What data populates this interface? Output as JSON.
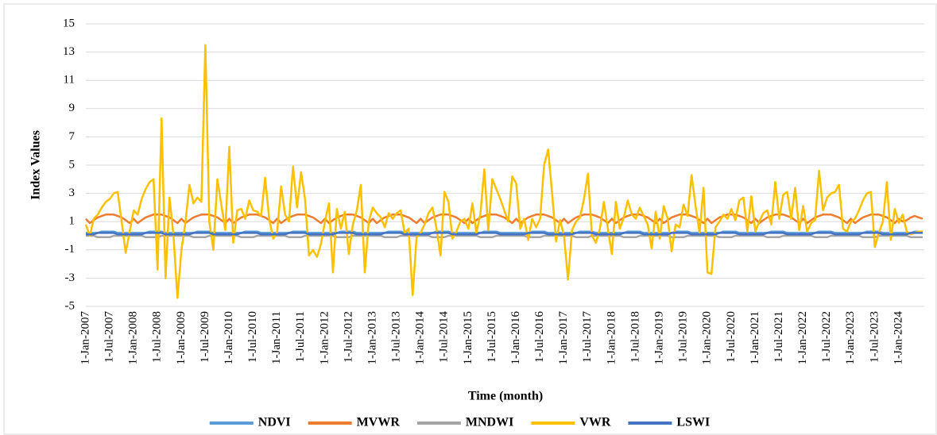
{
  "chart_data": {
    "type": "line",
    "y_label": "Index Values",
    "x_label": "Time (month)",
    "categories": [
      "1-Jan-2007",
      null,
      null,
      null,
      null,
      null,
      "1-Jul-2007",
      null,
      null,
      null,
      null,
      null,
      "1-Jan-2008",
      null,
      null,
      null,
      null,
      null,
      "1-Jul-2008",
      null,
      null,
      null,
      null,
      null,
      "1-Jan-2009",
      null,
      null,
      null,
      null,
      null,
      "1-Jul-2009",
      null,
      null,
      null,
      null,
      null,
      "1-Jan-2010",
      null,
      null,
      null,
      null,
      null,
      "1-Jul-2010",
      null,
      null,
      null,
      null,
      null,
      "1-Jan-2011",
      null,
      null,
      null,
      null,
      null,
      "1-Jul-2011",
      null,
      null,
      null,
      null,
      null,
      "1-Jan-2012",
      null,
      null,
      null,
      null,
      null,
      "1-Jul-2012",
      null,
      null,
      null,
      null,
      null,
      "1-Jan-2013",
      null,
      null,
      null,
      null,
      null,
      "1-Jul-2013",
      null,
      null,
      null,
      null,
      null,
      "1-Jan-2014",
      null,
      null,
      null,
      null,
      null,
      "1-Jul-2014",
      null,
      null,
      null,
      null,
      null,
      "1-Jan-2015",
      null,
      null,
      null,
      null,
      null,
      "1-Jul-2015",
      null,
      null,
      null,
      null,
      null,
      "1-Jan-2016",
      null,
      null,
      null,
      null,
      null,
      "1-Jul-2016",
      null,
      null,
      null,
      null,
      null,
      "1-Jan-2017",
      null,
      null,
      null,
      null,
      null,
      "1-Jul-2017",
      null,
      null,
      null,
      null,
      null,
      "1-Jan-2018",
      null,
      null,
      null,
      null,
      null,
      "1-Jul-2018",
      null,
      null,
      null,
      null,
      null,
      "1-Jan-2019",
      null,
      null,
      null,
      null,
      null,
      "1-Jul-2019",
      null,
      null,
      null,
      null,
      null,
      "1-Jan-2020",
      null,
      null,
      null,
      null,
      null,
      "1-Jul-2020",
      null,
      null,
      null,
      null,
      null,
      "1-Jan-2021",
      null,
      null,
      null,
      null,
      null,
      "1-Jul-2021",
      null,
      null,
      null,
      null,
      null,
      "1-Jan-2022",
      null,
      null,
      null,
      null,
      null,
      "1-Jul-2022",
      null,
      null,
      null,
      null,
      null,
      "1-Jan-2023",
      null,
      null,
      null,
      null,
      null,
      "1-Jul-2023",
      null,
      null,
      null,
      null,
      null,
      "1-Jan-2024",
      null,
      null,
      null,
      null,
      null,
      null
    ],
    "series": [
      {
        "name": "NDVI",
        "color": "#5b9bd5",
        "values": [
          0.2,
          0.2,
          0.2,
          0.2,
          0.3,
          0.3,
          0.3,
          0.3,
          0.2,
          0.2,
          0.2,
          0.2,
          0.2,
          0.2,
          0.2,
          0.2,
          0.3,
          0.3,
          0.3,
          0.3,
          0.2,
          0.2,
          0.2,
          0.2,
          0.2,
          0.2,
          0.2,
          0.2,
          0.3,
          0.3,
          0.3,
          0.3,
          0.2,
          0.2,
          0.2,
          0.2,
          0.2,
          0.2,
          0.2,
          0.2,
          0.3,
          0.3,
          0.3,
          0.3,
          0.2,
          0.2,
          0.2,
          0.2,
          0.2,
          0.2,
          0.2,
          0.2,
          0.3,
          0.3,
          0.3,
          0.3,
          0.2,
          0.2,
          0.2,
          0.2,
          0.2,
          0.2,
          0.2,
          0.2,
          0.3,
          0.3,
          0.3,
          0.3,
          0.2,
          0.2,
          0.2,
          0.2,
          0.2,
          0.2,
          0.2,
          0.2,
          0.3,
          0.3,
          0.3,
          0.3,
          0.2,
          0.2,
          0.2,
          0.2,
          0.2,
          0.2,
          0.2,
          0.2,
          0.3,
          0.3,
          0.3,
          0.3,
          0.2,
          0.2,
          0.2,
          0.2,
          0.2,
          0.2,
          0.2,
          0.2,
          0.3,
          0.3,
          0.3,
          0.3,
          0.2,
          0.2,
          0.2,
          0.2,
          0.2,
          0.2,
          0.2,
          0.2,
          0.3,
          0.3,
          0.3,
          0.3,
          0.2,
          0.2,
          0.2,
          0.2,
          0.2,
          0.2,
          0.2,
          0.2,
          0.3,
          0.3,
          0.3,
          0.3,
          0.2,
          0.2,
          0.2,
          0.2,
          0.2,
          0.2,
          0.2,
          0.2,
          0.3,
          0.3,
          0.3,
          0.3,
          0.2,
          0.2,
          0.2,
          0.2,
          0.2,
          0.2,
          0.2,
          0.2,
          0.3,
          0.3,
          0.3,
          0.3,
          0.2,
          0.2,
          0.2,
          0.2,
          0.2,
          0.2,
          0.2,
          0.2,
          0.3,
          0.3,
          0.3,
          0.3,
          0.2,
          0.2,
          0.2,
          0.2,
          0.2,
          0.2,
          0.2,
          0.2,
          0.3,
          0.3,
          0.3,
          0.3,
          0.2,
          0.2,
          0.2,
          0.2,
          0.2,
          0.2,
          0.2,
          0.2,
          0.3,
          0.3,
          0.3,
          0.3,
          0.2,
          0.2,
          0.2,
          0.2,
          0.2,
          0.2,
          0.2,
          0.2,
          0.3,
          0.3,
          0.3,
          0.3,
          0.2,
          0.2,
          0.2,
          0.2,
          0.2,
          0.2,
          0.2,
          0.2,
          0.3,
          0.3,
          0.3
        ]
      },
      {
        "name": "MVWR",
        "color": "#ed7d31",
        "values": [
          1.2,
          0.9,
          1.1,
          1.3,
          1.4,
          1.5,
          1.5,
          1.5,
          1.4,
          1.3,
          1.1,
          0.9,
          1.2,
          0.9,
          1.1,
          1.3,
          1.4,
          1.5,
          1.5,
          1.5,
          1.4,
          1.3,
          1.1,
          0.9,
          1.2,
          0.9,
          1.1,
          1.3,
          1.4,
          1.5,
          1.5,
          1.5,
          1.4,
          1.3,
          1.1,
          0.9,
          1.2,
          0.9,
          1.1,
          1.3,
          1.4,
          1.5,
          1.5,
          1.5,
          1.4,
          1.3,
          1.1,
          0.9,
          1.2,
          0.9,
          1.1,
          1.3,
          1.4,
          1.5,
          1.5,
          1.5,
          1.4,
          1.3,
          1.1,
          0.9,
          1.2,
          0.9,
          1.1,
          1.3,
          1.4,
          1.5,
          1.5,
          1.5,
          1.4,
          1.3,
          1.1,
          0.9,
          1.2,
          0.9,
          1.1,
          1.3,
          1.4,
          1.5,
          1.5,
          1.5,
          1.4,
          1.3,
          1.1,
          0.9,
          1.2,
          0.9,
          1.1,
          1.3,
          1.4,
          1.5,
          1.5,
          1.5,
          1.4,
          1.3,
          1.1,
          0.9,
          1.2,
          0.9,
          1.1,
          1.3,
          1.4,
          1.5,
          1.5,
          1.5,
          1.4,
          1.3,
          1.1,
          0.9,
          1.2,
          0.9,
          1.1,
          1.3,
          1.4,
          1.5,
          1.5,
          1.5,
          1.4,
          1.3,
          1.1,
          0.9,
          1.2,
          0.9,
          1.1,
          1.3,
          1.4,
          1.5,
          1.5,
          1.5,
          1.4,
          1.3,
          1.1,
          0.9,
          1.2,
          0.9,
          1.1,
          1.3,
          1.4,
          1.5,
          1.5,
          1.5,
          1.4,
          1.3,
          1.1,
          0.9,
          1.2,
          0.9,
          1.1,
          1.3,
          1.4,
          1.5,
          1.5,
          1.5,
          1.4,
          1.3,
          1.1,
          0.9,
          1.2,
          0.9,
          1.1,
          1.3,
          1.4,
          1.5,
          1.5,
          1.5,
          1.4,
          1.3,
          1.1,
          0.9,
          1.2,
          0.9,
          1.1,
          1.3,
          1.4,
          1.5,
          1.5,
          1.5,
          1.4,
          1.3,
          1.1,
          0.9,
          1.2,
          0.9,
          1.1,
          1.3,
          1.4,
          1.5,
          1.5,
          1.5,
          1.4,
          1.3,
          1.1,
          0.9,
          1.2,
          0.9,
          1.1,
          1.3,
          1.4,
          1.5,
          1.5,
          1.5,
          1.4,
          1.3,
          1.1,
          0.9,
          1.2,
          1.0,
          1.1,
          1.3,
          1.4,
          1.3,
          1.2
        ]
      },
      {
        "name": "MNDWI",
        "color": "#a5a5a5",
        "values": [
          0.0,
          0.0,
          0.0,
          -0.1,
          -0.1,
          -0.1,
          -0.1,
          0.0,
          0.0,
          0.0,
          0.0,
          0.0,
          0.0,
          0.0,
          0.0,
          -0.1,
          -0.1,
          -0.1,
          -0.1,
          0.0,
          0.0,
          0.0,
          0.0,
          0.0,
          0.0,
          0.0,
          0.0,
          -0.1,
          -0.1,
          -0.1,
          -0.1,
          0.0,
          0.0,
          0.0,
          0.0,
          0.0,
          0.0,
          0.0,
          0.0,
          -0.1,
          -0.1,
          -0.1,
          -0.1,
          0.0,
          0.0,
          0.0,
          0.0,
          0.0,
          0.0,
          0.0,
          0.0,
          -0.1,
          -0.1,
          -0.1,
          -0.1,
          0.0,
          0.0,
          0.0,
          0.0,
          0.0,
          0.0,
          0.0,
          0.0,
          -0.1,
          -0.1,
          -0.1,
          -0.1,
          0.0,
          0.0,
          0.0,
          0.0,
          0.0,
          0.0,
          0.0,
          0.0,
          -0.1,
          -0.1,
          -0.1,
          -0.1,
          0.0,
          0.0,
          0.0,
          0.0,
          0.0,
          0.0,
          0.0,
          0.0,
          -0.1,
          -0.1,
          -0.1,
          -0.1,
          0.0,
          0.0,
          0.0,
          0.0,
          0.0,
          0.0,
          0.0,
          0.0,
          -0.1,
          -0.1,
          -0.1,
          -0.1,
          0.0,
          0.0,
          0.0,
          0.0,
          0.0,
          0.0,
          0.0,
          0.0,
          -0.1,
          -0.1,
          -0.1,
          -0.1,
          0.0,
          0.0,
          0.0,
          0.0,
          0.0,
          0.0,
          0.0,
          0.0,
          -0.1,
          -0.1,
          -0.1,
          -0.1,
          0.0,
          0.0,
          0.0,
          0.0,
          0.0,
          0.0,
          0.0,
          0.0,
          -0.1,
          -0.1,
          -0.1,
          -0.1,
          0.0,
          0.0,
          0.0,
          0.0,
          0.0,
          0.0,
          0.0,
          0.0,
          -0.1,
          -0.1,
          -0.1,
          -0.1,
          0.0,
          0.0,
          0.0,
          0.0,
          0.0,
          0.0,
          0.0,
          0.0,
          -0.1,
          -0.1,
          -0.1,
          -0.1,
          0.0,
          0.0,
          0.0,
          0.0,
          0.0,
          0.0,
          0.0,
          0.0,
          -0.1,
          -0.1,
          -0.1,
          -0.1,
          0.0,
          0.0,
          0.0,
          0.0,
          0.0,
          0.0,
          0.0,
          0.0,
          -0.1,
          -0.1,
          -0.1,
          -0.1,
          0.0,
          0.0,
          0.0,
          0.0,
          0.0,
          0.0,
          0.0,
          0.0,
          -0.1,
          -0.1,
          -0.1,
          -0.1,
          0.0,
          0.0,
          0.0,
          0.0,
          0.0,
          0.0,
          0.0,
          0.0,
          -0.1,
          -0.1,
          -0.1,
          -0.1
        ]
      },
      {
        "name": "VWR",
        "color": "#ffc000",
        "values": [
          0.8,
          0.0,
          1.2,
          1.5,
          2.0,
          2.4,
          2.6,
          3.0,
          3.1,
          1.0,
          -1.2,
          0.3,
          1.8,
          1.5,
          2.6,
          3.3,
          3.8,
          4.0,
          -2.4,
          8.3,
          -3.0,
          2.7,
          0.0,
          -4.4,
          -1.0,
          1.0,
          3.6,
          2.3,
          2.7,
          2.4,
          13.5,
          1.0,
          -1.0,
          4.0,
          2.2,
          0.4,
          6.3,
          -0.5,
          1.8,
          1.9,
          1.2,
          2.5,
          1.8,
          1.7,
          1.4,
          4.1,
          1.2,
          -0.2,
          0.2,
          3.5,
          1.5,
          1.0,
          4.9,
          2.0,
          4.5,
          2.6,
          -1.4,
          -1.0,
          -1.5,
          -0.6,
          1.0,
          2.3,
          -2.6,
          1.9,
          0.5,
          1.7,
          -1.3,
          0.8,
          1.8,
          3.6,
          -2.6,
          1.0,
          2.0,
          1.6,
          1.3,
          0.6,
          1.6,
          1.2,
          1.6,
          1.8,
          0.2,
          0.5,
          -4.2,
          -0.1,
          0.2,
          0.8,
          1.6,
          2.0,
          0.5,
          -1.4,
          3.1,
          2.4,
          -0.2,
          0.3,
          1.0,
          1.2,
          0.5,
          2.3,
          0.2,
          1.5,
          4.7,
          0.4,
          4.0,
          3.3,
          2.6,
          1.8,
          1.0,
          4.2,
          3.7,
          0.5,
          1.2,
          -0.3,
          1.2,
          0.6,
          1.2,
          5.0,
          6.1,
          3.0,
          -0.4,
          1.1,
          0.0,
          -3.1,
          0.4,
          1.0,
          1.3,
          2.6,
          4.4,
          0.0,
          -0.5,
          0.5,
          2.4,
          0.5,
          -1.3,
          2.4,
          0.5,
          1.3,
          2.5,
          1.5,
          1.2,
          2.0,
          1.4,
          0.8,
          -0.9,
          1.7,
          -0.2,
          2.1,
          1.2,
          -1.1,
          0.8,
          0.6,
          2.2,
          1.4,
          4.3,
          2.1,
          0.2,
          3.4,
          -2.6,
          -2.7,
          0.6,
          1.0,
          1.5,
          1.2,
          1.9,
          1.1,
          2.5,
          2.7,
          0.3,
          2.8,
          0.3,
          1.0,
          1.6,
          1.8,
          0.8,
          3.8,
          1.2,
          2.9,
          3.1,
          1.2,
          3.4,
          0.4,
          2.1,
          0.3,
          0.9,
          1.1,
          4.6,
          1.8,
          2.7,
          3.0,
          3.1,
          3.6,
          0.5,
          0.3,
          1.0,
          1.2,
          1.8,
          2.5,
          3.0,
          3.1,
          -0.8,
          0.2,
          1.0,
          3.8,
          -0.3,
          1.9,
          0.9,
          1.5,
          0.3,
          0.1,
          0.2,
          0.3,
          0.3
        ]
      },
      {
        "name": "LSWI",
        "color": "#4472c4",
        "values": [
          0.1,
          0.1,
          0.1,
          0.2,
          0.2,
          0.2,
          0.2,
          0.2,
          0.1,
          0.1,
          0.1,
          0.1,
          0.1,
          0.1,
          0.1,
          0.2,
          0.2,
          0.2,
          0.2,
          0.2,
          0.1,
          0.1,
          0.1,
          0.1,
          0.1,
          0.1,
          0.1,
          0.2,
          0.2,
          0.2,
          0.2,
          0.2,
          0.1,
          0.1,
          0.1,
          0.1,
          0.1,
          0.1,
          0.1,
          0.2,
          0.2,
          0.2,
          0.2,
          0.2,
          0.1,
          0.1,
          0.1,
          0.1,
          0.1,
          0.1,
          0.1,
          0.2,
          0.2,
          0.2,
          0.2,
          0.2,
          0.1,
          0.1,
          0.1,
          0.1,
          0.1,
          0.1,
          0.1,
          0.2,
          0.2,
          0.2,
          0.2,
          0.2,
          0.1,
          0.1,
          0.1,
          0.1,
          0.1,
          0.1,
          0.1,
          0.2,
          0.2,
          0.2,
          0.2,
          0.2,
          0.1,
          0.1,
          0.1,
          0.1,
          0.1,
          0.1,
          0.1,
          0.2,
          0.2,
          0.2,
          0.2,
          0.2,
          0.1,
          0.1,
          0.1,
          0.1,
          0.1,
          0.1,
          0.1,
          0.2,
          0.2,
          0.2,
          0.2,
          0.2,
          0.1,
          0.1,
          0.1,
          0.1,
          0.1,
          0.1,
          0.1,
          0.2,
          0.2,
          0.2,
          0.2,
          0.2,
          0.1,
          0.1,
          0.1,
          0.1,
          0.1,
          0.1,
          0.1,
          0.2,
          0.2,
          0.2,
          0.2,
          0.2,
          0.1,
          0.1,
          0.1,
          0.1,
          0.1,
          0.1,
          0.1,
          0.2,
          0.2,
          0.2,
          0.2,
          0.2,
          0.1,
          0.1,
          0.1,
          0.1,
          0.1,
          0.1,
          0.1,
          0.2,
          0.2,
          0.2,
          0.2,
          0.2,
          0.1,
          0.1,
          0.1,
          0.1,
          0.1,
          0.1,
          0.1,
          0.2,
          0.2,
          0.2,
          0.2,
          0.2,
          0.1,
          0.1,
          0.1,
          0.1,
          0.1,
          0.1,
          0.1,
          0.2,
          0.2,
          0.2,
          0.2,
          0.2,
          0.1,
          0.1,
          0.1,
          0.1,
          0.1,
          0.1,
          0.1,
          0.2,
          0.2,
          0.2,
          0.2,
          0.2,
          0.1,
          0.1,
          0.1,
          0.1,
          0.1,
          0.1,
          0.1,
          0.2,
          0.2,
          0.2,
          0.2,
          0.2,
          0.1,
          0.1,
          0.1,
          0.1,
          0.1,
          0.1,
          0.1,
          0.2,
          0.2,
          0.2,
          0.2
        ]
      }
    ],
    "ylim": [
      -5,
      15
    ],
    "yticks": [
      -5,
      -3,
      -1,
      1,
      3,
      5,
      7,
      9,
      11,
      13,
      15
    ],
    "grid": true,
    "legend": "bottom"
  }
}
